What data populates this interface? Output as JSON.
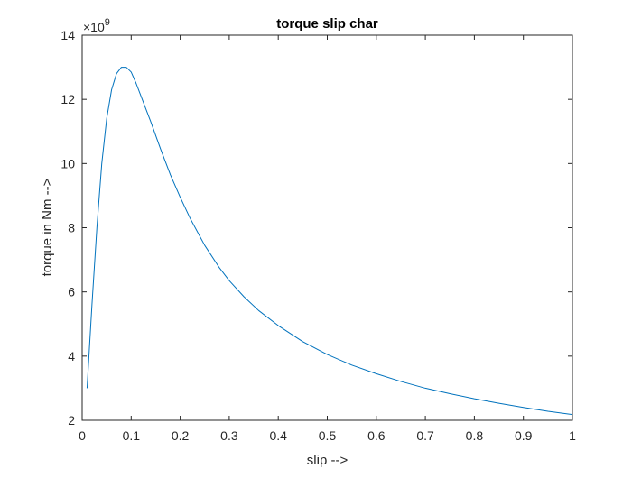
{
  "chart_data": {
    "type": "line",
    "title": "torque slip char",
    "xlabel": "slip -->",
    "ylabel": "torque in Nm -->",
    "y_exponent_label": "×10",
    "y_exponent": "9",
    "xlim": [
      0,
      1
    ],
    "ylim": [
      2,
      14
    ],
    "xticks": [
      0,
      0.1,
      0.2,
      0.3,
      0.4,
      0.5,
      0.6,
      0.7,
      0.8,
      0.9,
      1
    ],
    "xtick_labels": [
      "0",
      "0.1",
      "0.2",
      "0.3",
      "0.4",
      "0.5",
      "0.6",
      "0.7",
      "0.8",
      "0.9",
      "1"
    ],
    "yticks": [
      2,
      4,
      6,
      8,
      10,
      12,
      14
    ],
    "ytick_labels": [
      "2",
      "4",
      "6",
      "8",
      "10",
      "12",
      "14"
    ],
    "grid": false,
    "series": [
      {
        "color": "#0072bd",
        "x": [
          0.01,
          0.02,
          0.03,
          0.04,
          0.05,
          0.06,
          0.07,
          0.08,
          0.09,
          0.1,
          0.11,
          0.12,
          0.14,
          0.16,
          0.18,
          0.2,
          0.22,
          0.25,
          0.28,
          0.3,
          0.33,
          0.36,
          0.4,
          0.45,
          0.5,
          0.55,
          0.6,
          0.65,
          0.7,
          0.75,
          0.8,
          0.85,
          0.9,
          0.95,
          1.0
        ],
        "y": [
          3.0,
          5.6,
          8.0,
          10.0,
          11.4,
          12.3,
          12.8,
          13.0,
          13.0,
          12.85,
          12.5,
          12.1,
          11.3,
          10.45,
          9.65,
          8.95,
          8.3,
          7.45,
          6.75,
          6.35,
          5.85,
          5.42,
          4.95,
          4.45,
          4.05,
          3.72,
          3.45,
          3.21,
          3.0,
          2.83,
          2.67,
          2.53,
          2.4,
          2.28,
          2.18
        ]
      }
    ]
  }
}
